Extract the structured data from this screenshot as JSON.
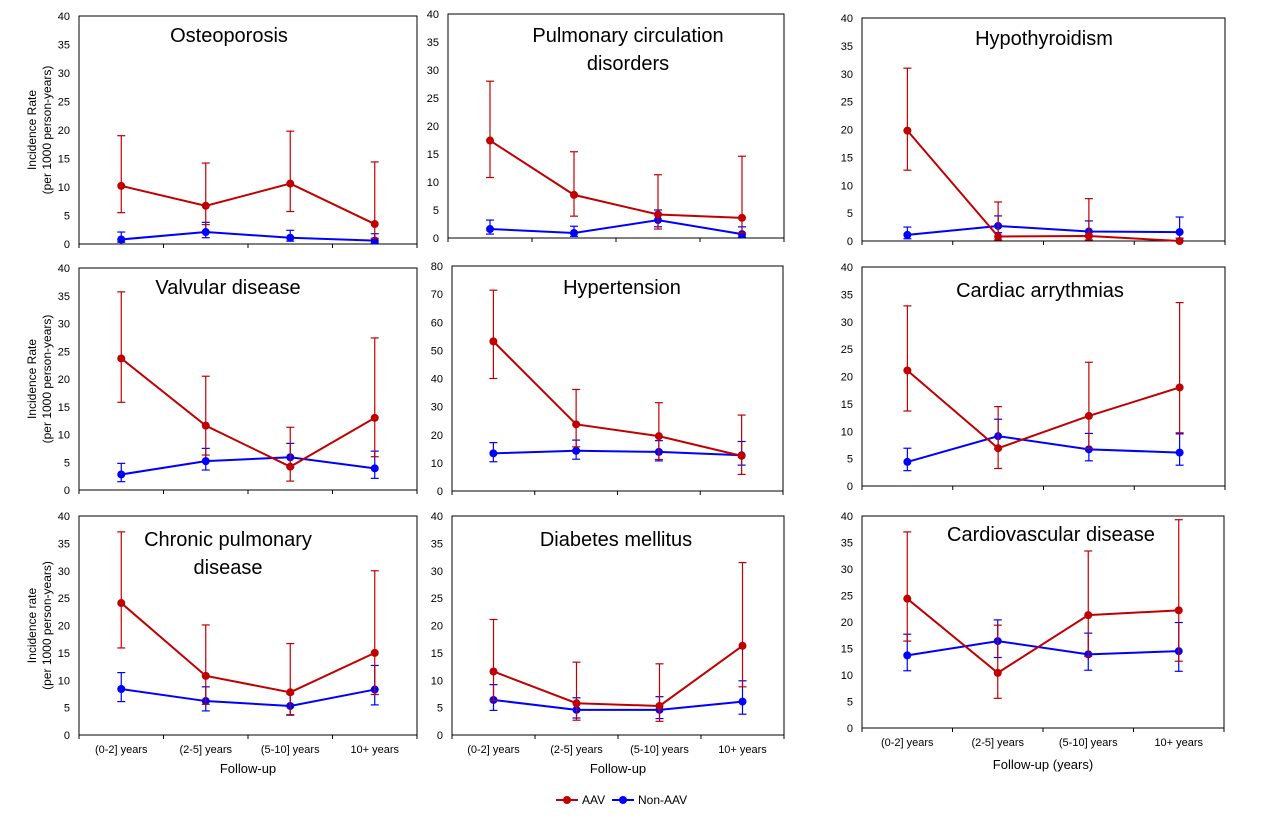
{
  "legend": {
    "placement": "bottom-center",
    "entries": [
      {
        "name": "AAV",
        "color": "#c00000"
      },
      {
        "name": "Non-AAV",
        "color": "#0000ff"
      }
    ]
  },
  "chart_data": [
    {
      "type": "line",
      "title": "Osteoporosis",
      "xlabel": "",
      "ylabel": "Incidence Rate\n(per 1000 person-years)",
      "ylim": [
        0,
        40
      ],
      "yticks": [
        0,
        5,
        10,
        15,
        20,
        25,
        30,
        35,
        40
      ],
      "categories": [
        "(0-2] years",
        "(2-5] years",
        "(5-10] years",
        "10+ years"
      ],
      "show_category_labels": false,
      "series": [
        {
          "name": "AAV",
          "color": "#c00000",
          "values": [
            10.2,
            6.7,
            10.6,
            3.5
          ],
          "err_low": [
            5.5,
            3.4,
            5.7,
            1.0
          ],
          "err_high": [
            19.0,
            14.2,
            19.8,
            14.4
          ]
        },
        {
          "name": "Non-AAV",
          "color": "#0000ff",
          "values": [
            0.8,
            2.1,
            1.1,
            0.6
          ],
          "err_low": [
            0.3,
            1.1,
            0.5,
            0.2
          ],
          "err_high": [
            2.1,
            3.8,
            2.4,
            1.8
          ]
        }
      ]
    },
    {
      "type": "line",
      "title": "Pulmonary circulation\ndisorders",
      "xlabel": "",
      "ylabel": "",
      "ylim": [
        0,
        40
      ],
      "yticks": [
        0,
        5,
        10,
        15,
        20,
        25,
        30,
        35,
        40
      ],
      "categories": [
        "(0-2] years",
        "(2-5] years",
        "(5-10] years",
        "10+ years"
      ],
      "show_category_labels": false,
      "series": [
        {
          "name": "AAV",
          "color": "#c00000",
          "values": [
            17.4,
            7.7,
            4.2,
            3.6
          ],
          "err_low": [
            10.8,
            3.9,
            1.6,
            0.9
          ],
          "err_high": [
            28.0,
            15.4,
            11.3,
            14.6
          ]
        },
        {
          "name": "Non-AAV",
          "color": "#0000ff",
          "values": [
            1.6,
            0.9,
            3.2,
            0.7
          ],
          "err_low": [
            0.7,
            0.3,
            2.0,
            0.2
          ],
          "err_high": [
            3.2,
            2.1,
            5.0,
            2.0
          ]
        }
      ]
    },
    {
      "type": "line",
      "title": "Hypothyroidism",
      "xlabel": "",
      "ylabel": "",
      "ylim": [
        0,
        40
      ],
      "yticks": [
        0,
        5,
        10,
        15,
        20,
        25,
        30,
        35,
        40
      ],
      "categories": [
        "(0-2] years",
        "(2-5] years",
        "(5-10] years",
        "10+ years"
      ],
      "show_category_labels": false,
      "series": [
        {
          "name": "AAV",
          "color": "#c00000",
          "values": [
            19.8,
            0.8,
            0.9,
            0.0
          ],
          "err_low": [
            12.7,
            0.2,
            0.2,
            0.0
          ],
          "err_high": [
            31.0,
            7.0,
            7.6,
            0.0
          ]
        },
        {
          "name": "Non-AAV",
          "color": "#0000ff",
          "values": [
            1.1,
            2.7,
            1.7,
            1.6
          ],
          "err_low": [
            0.4,
            1.5,
            0.8,
            0.5
          ],
          "err_high": [
            2.5,
            4.5,
            3.6,
            4.3
          ]
        }
      ]
    },
    {
      "type": "line",
      "title": "Valvular disease",
      "xlabel": "",
      "ylabel": "Incidence Rate\n(per 1000 person-years)",
      "ylim": [
        0,
        40
      ],
      "yticks": [
        0,
        5,
        10,
        15,
        20,
        25,
        30,
        35,
        40
      ],
      "categories": [
        "(0-2] years",
        "(2-5] years",
        "(5-10] years",
        "10+ years"
      ],
      "show_category_labels": false,
      "series": [
        {
          "name": "AAV",
          "color": "#c00000",
          "values": [
            23.7,
            11.6,
            4.2,
            13.0
          ],
          "err_low": [
            15.8,
            6.3,
            1.6,
            6.0
          ],
          "err_high": [
            35.7,
            20.5,
            11.3,
            27.4
          ]
        },
        {
          "name": "Non-AAV",
          "color": "#0000ff",
          "values": [
            2.8,
            5.2,
            5.9,
            3.9
          ],
          "err_low": [
            1.5,
            3.6,
            4.1,
            2.1
          ],
          "err_high": [
            4.8,
            7.5,
            8.4,
            7.0
          ]
        }
      ]
    },
    {
      "type": "line",
      "title": "Hypertension",
      "xlabel": "",
      "ylabel": "",
      "ylim": [
        0,
        80
      ],
      "yticks": [
        0,
        10,
        20,
        30,
        40,
        50,
        60,
        70,
        80
      ],
      "categories": [
        "(0-2] years",
        "(2-5] years",
        "(5-10] years",
        "10+ years"
      ],
      "show_category_labels": false,
      "series": [
        {
          "name": "AAV",
          "color": "#c00000",
          "values": [
            53.2,
            23.7,
            19.5,
            12.5
          ],
          "err_low": [
            40.0,
            15.7,
            11.2,
            5.9
          ],
          "err_high": [
            71.4,
            36.1,
            31.4,
            27.0
          ]
        },
        {
          "name": "Non-AAV",
          "color": "#0000ff",
          "values": [
            13.4,
            14.3,
            13.9,
            12.7
          ],
          "err_low": [
            10.4,
            11.3,
            10.7,
            9.2
          ],
          "err_high": [
            17.2,
            18.1,
            17.9,
            17.6
          ]
        }
      ]
    },
    {
      "type": "line",
      "title": "Cardiac arrythmias",
      "xlabel": "",
      "ylabel": "",
      "ylim": [
        0,
        40
      ],
      "yticks": [
        0,
        5,
        10,
        15,
        20,
        25,
        30,
        35,
        40
      ],
      "categories": [
        "(0-2] years",
        "(2-5] years",
        "(5-10] years",
        "10+ years"
      ],
      "show_category_labels": false,
      "series": [
        {
          "name": "AAV",
          "color": "#c00000",
          "values": [
            21.1,
            6.9,
            12.8,
            18.0
          ],
          "err_low": [
            13.7,
            3.2,
            6.9,
            9.5
          ],
          "err_high": [
            32.9,
            14.5,
            22.6,
            33.5
          ]
        },
        {
          "name": "Non-AAV",
          "color": "#0000ff",
          "values": [
            4.4,
            9.1,
            6.7,
            6.1
          ],
          "err_low": [
            2.8,
            6.8,
            4.6,
            3.8
          ],
          "err_high": [
            6.9,
            12.2,
            9.6,
            9.7
          ]
        }
      ]
    },
    {
      "type": "line",
      "title": "Chronic pulmonary\ndisease",
      "xlabel": "Follow-up",
      "ylabel": "Incidence  rate\n(per 1000 person-years)",
      "ylim": [
        0,
        40
      ],
      "yticks": [
        0,
        5,
        10,
        15,
        20,
        25,
        30,
        35,
        40
      ],
      "categories": [
        "(0-2] years",
        "(2-5] years",
        "(5-10] years",
        "10+ years"
      ],
      "show_category_labels": true,
      "series": [
        {
          "name": "AAV",
          "color": "#c00000",
          "values": [
            24.1,
            10.8,
            7.8,
            15.0
          ],
          "err_low": [
            15.9,
            5.6,
            3.6,
            7.4
          ],
          "err_high": [
            37.1,
            20.1,
            16.7,
            30.0
          ]
        },
        {
          "name": "Non-AAV",
          "color": "#0000ff",
          "values": [
            8.4,
            6.2,
            5.3,
            8.3
          ],
          "err_low": [
            6.1,
            4.4,
            3.7,
            5.5
          ],
          "err_high": [
            11.4,
            8.8,
            7.5,
            12.7
          ]
        }
      ]
    },
    {
      "type": "line",
      "title": "Diabetes mellitus",
      "xlabel": "Follow-up",
      "ylabel": "",
      "ylim": [
        0,
        40
      ],
      "yticks": [
        0,
        5,
        10,
        15,
        20,
        25,
        30,
        35,
        40
      ],
      "categories": [
        "(0-2] years",
        "(2-5] years",
        "(5-10] years",
        "10+ years"
      ],
      "show_category_labels": true,
      "series": [
        {
          "name": "AAV",
          "color": "#c00000",
          "values": [
            11.6,
            5.8,
            5.3,
            16.3
          ],
          "err_low": [
            6.3,
            2.7,
            2.5,
            8.8
          ],
          "err_high": [
            21.1,
            13.3,
            13.0,
            31.5
          ]
        },
        {
          "name": "Non-AAV",
          "color": "#0000ff",
          "values": [
            6.4,
            4.6,
            4.6,
            6.1
          ],
          "err_low": [
            4.5,
            3.1,
            3.0,
            3.8
          ],
          "err_high": [
            9.2,
            6.8,
            7.0,
            9.9
          ]
        }
      ]
    },
    {
      "type": "line",
      "title": "Cardiovascular disease",
      "xlabel": "Follow-up (years)",
      "ylabel": "",
      "ylim": [
        0,
        40
      ],
      "yticks": [
        0,
        5,
        10,
        15,
        20,
        25,
        30,
        35,
        40
      ],
      "categories": [
        "(0-2] years",
        "(2-5] years",
        "(5-10] years",
        "10+ years"
      ],
      "show_category_labels": true,
      "series": [
        {
          "name": "AAV",
          "color": "#c00000",
          "values": [
            24.4,
            10.4,
            21.3,
            22.2
          ],
          "err_low": [
            16.4,
            5.6,
            13.5,
            12.6
          ],
          "err_high": [
            37.0,
            19.4,
            33.4,
            39.3
          ]
        },
        {
          "name": "Non-AAV",
          "color": "#0000ff",
          "values": [
            13.7,
            16.4,
            13.9,
            14.5
          ],
          "err_low": [
            10.8,
            13.3,
            10.9,
            10.7
          ],
          "err_high": [
            17.7,
            20.4,
            17.9,
            19.9
          ]
        }
      ]
    }
  ]
}
